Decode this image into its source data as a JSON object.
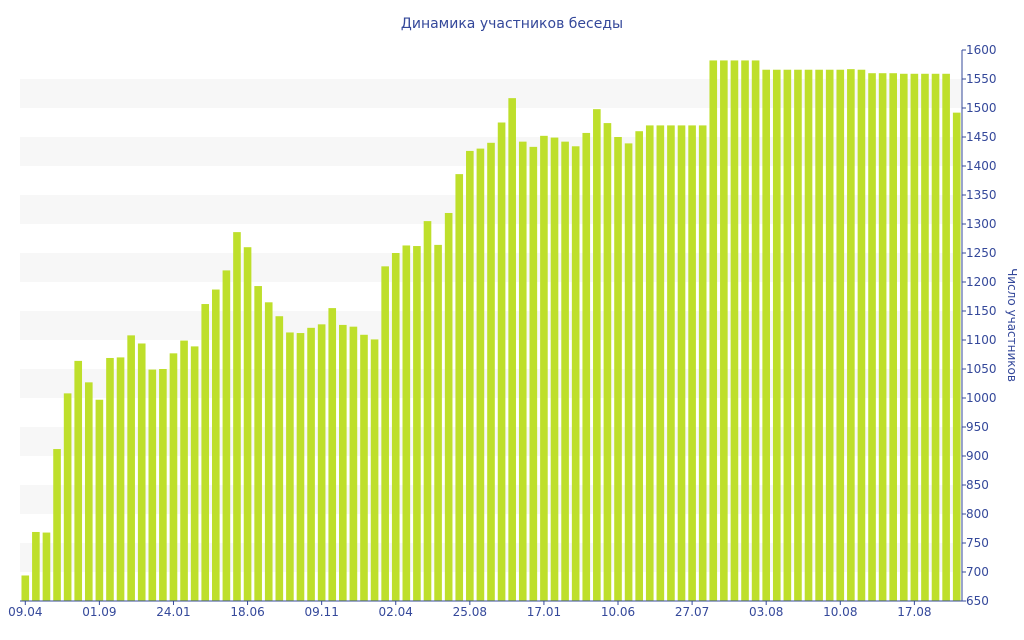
{
  "chart_data": {
    "type": "bar",
    "title": "Динамика участников беседы",
    "xlabel": "",
    "ylabel": "Число участников",
    "y_axis_side": "right",
    "ylim": [
      650,
      1600
    ],
    "yticks": [
      650,
      700,
      750,
      800,
      850,
      900,
      950,
      1000,
      1050,
      1100,
      1150,
      1200,
      1250,
      1300,
      1350,
      1400,
      1450,
      1500,
      1550,
      1600
    ],
    "grid": "alternating horizontal bands",
    "legend": "none",
    "bar_color": "#bedf2b",
    "band_color": "#f7f7f7",
    "text_color": "#34489a",
    "xtick_labels": [
      {
        "index": 0,
        "label": "09.04"
      },
      {
        "index": 7,
        "label": "01.09"
      },
      {
        "index": 14,
        "label": "24.01"
      },
      {
        "index": 21,
        "label": "18.06"
      },
      {
        "index": 28,
        "label": "09.11"
      },
      {
        "index": 35,
        "label": "02.04"
      },
      {
        "index": 42,
        "label": "25.08"
      },
      {
        "index": 49,
        "label": "17.01"
      },
      {
        "index": 56,
        "label": "10.06"
      },
      {
        "index": 63,
        "label": "27.07"
      },
      {
        "index": 70,
        "label": "03.08"
      },
      {
        "index": 77,
        "label": "10.08"
      },
      {
        "index": 84,
        "label": "17.08"
      }
    ],
    "values": [
      694,
      769,
      768,
      912,
      1008,
      1064,
      1027,
      997,
      1069,
      1070,
      1108,
      1094,
      1049,
      1050,
      1077,
      1099,
      1089,
      1162,
      1187,
      1220,
      1286,
      1260,
      1193,
      1165,
      1141,
      1113,
      1112,
      1121,
      1127,
      1155,
      1126,
      1123,
      1109,
      1101,
      1227,
      1250,
      1263,
      1262,
      1305,
      1264,
      1319,
      1386,
      1426,
      1430,
      1440,
      1475,
      1517,
      1442,
      1433,
      1452,
      1449,
      1442,
      1434,
      1457,
      1498,
      1474,
      1450,
      1439,
      1460,
      1470,
      1470,
      1470,
      1470,
      1470,
      1470,
      1582,
      1582,
      1582,
      1582,
      1582,
      1566,
      1566,
      1566,
      1566,
      1566,
      1566,
      1566,
      1566,
      1567,
      1566,
      1560,
      1560,
      1560,
      1559,
      1559,
      1559,
      1559,
      1559,
      1492
    ]
  }
}
